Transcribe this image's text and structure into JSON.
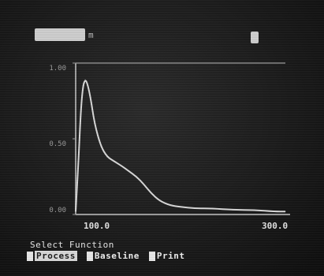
{
  "header": {
    "left_badge": "",
    "left_suffix": "m",
    "right_badge": ""
  },
  "plot": {
    "y_ticks": [
      "1.00",
      "0.50",
      "0.00"
    ],
    "x_ticks": [
      "100.0",
      "300.0"
    ]
  },
  "menu": {
    "title": "Select Function",
    "items": [
      {
        "key": "1",
        "label": "Process"
      },
      {
        "key": "2",
        "label": "Baseline"
      },
      {
        "key": "3",
        "label": "Print"
      }
    ]
  },
  "chart_data": {
    "type": "line",
    "title": "",
    "xlabel": "",
    "ylabel": "",
    "xlim": [
      100.0,
      300.0
    ],
    "ylim": [
      0.0,
      1.0
    ],
    "grid": false,
    "series": [
      {
        "values_x": [
          100,
          103,
          105,
          107,
          109,
          111,
          114,
          118,
          124,
          130,
          137,
          144,
          150,
          158,
          165,
          172,
          180,
          190,
          200,
          215,
          230,
          250,
          270,
          290,
          300
        ],
        "values_y": [
          0.02,
          0.4,
          0.7,
          0.85,
          0.89,
          0.87,
          0.78,
          0.6,
          0.45,
          0.38,
          0.35,
          0.32,
          0.29,
          0.25,
          0.2,
          0.14,
          0.09,
          0.06,
          0.05,
          0.04,
          0.04,
          0.03,
          0.03,
          0.02,
          0.02
        ]
      }
    ],
    "colors": {
      "line": "#d9d9d9",
      "axes": "#9e9e9e",
      "frame": "#8a8a8a"
    }
  }
}
